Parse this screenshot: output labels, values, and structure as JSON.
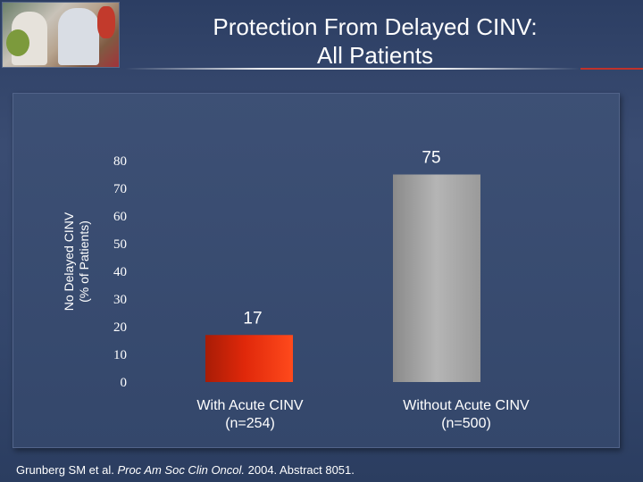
{
  "slide": {
    "title_line1": "Protection From Delayed CINV:",
    "title_line2": "All Patients",
    "citation_authors": "Grunberg SM et al. ",
    "citation_journal": "Proc Am Soc Clin Oncol.",
    "citation_rest": " 2004. Abstract 8051."
  },
  "colors": {
    "bar_with_acute": "#e0280a",
    "bar_without_acute": "#b5b5b5",
    "background": "#33466b"
  },
  "chart_data": {
    "type": "bar",
    "categories": [
      [
        "With Acute CINV",
        "(n=254)"
      ],
      [
        "Without Acute CINV",
        "(n=500)"
      ]
    ],
    "values": [
      17,
      75
    ],
    "data_labels": [
      "17",
      "75"
    ],
    "ylabel_line1": "No Delayed CINV",
    "ylabel_line2": "(% of Patients)",
    "yticks": [
      "0",
      "10",
      "20",
      "30",
      "40",
      "50",
      "60",
      "70",
      "80"
    ],
    "ylim": [
      0,
      80
    ],
    "grid": false,
    "legend": "none"
  }
}
